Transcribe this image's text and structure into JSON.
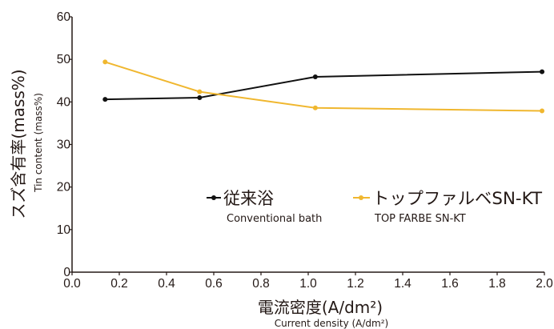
{
  "chart_data": {
    "type": "line",
    "xlim": [
      0.0,
      2.0
    ],
    "ylim": [
      0,
      60
    ],
    "x_ticks": [
      "0.0",
      "0.2",
      "0.4",
      "0.6",
      "0.8",
      "1.0",
      "1.2",
      "1.4",
      "1.6",
      "1.8",
      "2.0"
    ],
    "y_ticks": [
      "0",
      "10",
      "20",
      "30",
      "40",
      "50",
      "60"
    ],
    "xlabel": "電流密度(A/dm²)",
    "xlabel_sub": "Current density (A/dm²)",
    "ylabel": "スズ含有率(mass%)",
    "ylabel_sub": "Tin content (mass%)",
    "grid": false,
    "legend_position": "center",
    "series": [
      {
        "name": "従来浴",
        "name_sub": "Conventional bath",
        "color": "#111111",
        "x": [
          0.14,
          0.54,
          1.03,
          1.99
        ],
        "values": [
          40.6,
          41.0,
          45.9,
          47.1
        ]
      },
      {
        "name": "トップファルベSN-KT",
        "name_sub": "TOP FARBE SN-KT",
        "color": "#f0b72f",
        "x": [
          0.14,
          0.54,
          1.03,
          1.99
        ],
        "values": [
          49.4,
          42.4,
          38.6,
          37.9
        ]
      }
    ]
  }
}
